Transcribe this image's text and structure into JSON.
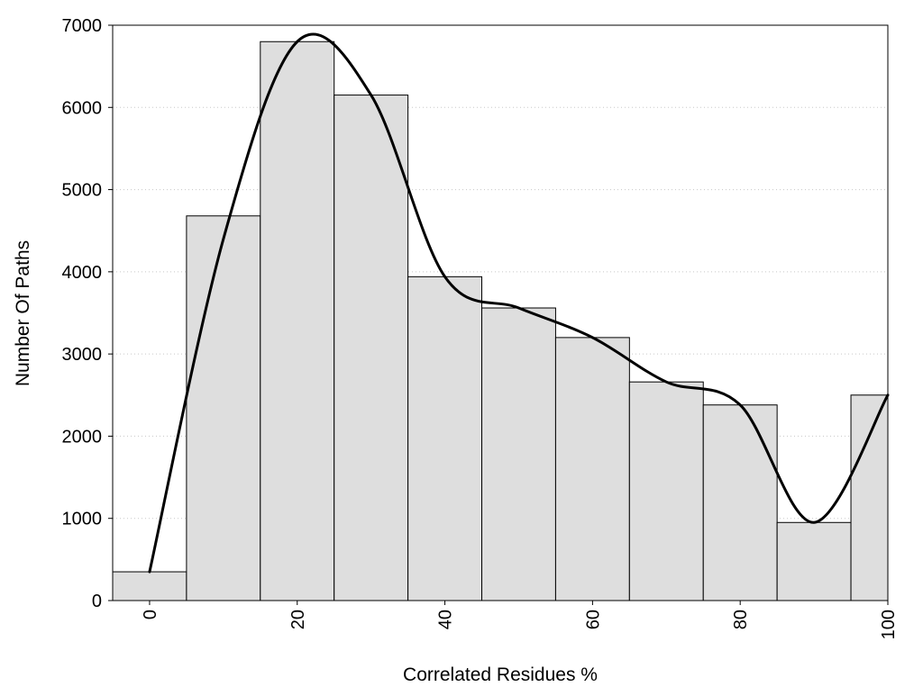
{
  "chart_data": {
    "type": "bar",
    "subtype": "histogram-with-smooth-curve",
    "xlabel": "Correlated Residues %",
    "ylabel": "Number Of Paths",
    "bins": [
      0,
      10,
      20,
      30,
      40,
      50,
      60,
      70,
      80,
      90,
      100
    ],
    "values": [
      350,
      4680,
      6800,
      6150,
      3940,
      3560,
      3200,
      2660,
      2380,
      950,
      2500
    ],
    "curve": {
      "x": [
        0,
        10,
        20,
        30,
        40,
        50,
        60,
        70,
        80,
        90,
        100
      ],
      "y": [
        350,
        4400,
        6800,
        6150,
        3940,
        3560,
        3200,
        2660,
        2380,
        950,
        2500
      ]
    },
    "xlim": [
      -5,
      100
    ],
    "ylim": [
      0,
      7000
    ],
    "x_ticks": [
      0,
      20,
      40,
      60,
      80,
      100
    ],
    "y_ticks": [
      0,
      1000,
      2000,
      3000,
      4000,
      5000,
      6000,
      7000
    ],
    "x_tick_labels": [
      "0",
      "20",
      "40",
      "60",
      "80",
      "100"
    ],
    "y_tick_labels": [
      "0",
      "1000",
      "2000",
      "3000",
      "4000",
      "5000",
      "6000",
      "7000"
    ],
    "grid": "horizontal-dotted",
    "legend": "none",
    "colors": {
      "bar_fill": "#dedede",
      "bar_stroke": "#000000",
      "curve": "#000000",
      "grid": "#c8c8c8",
      "frame": "#000000"
    }
  }
}
